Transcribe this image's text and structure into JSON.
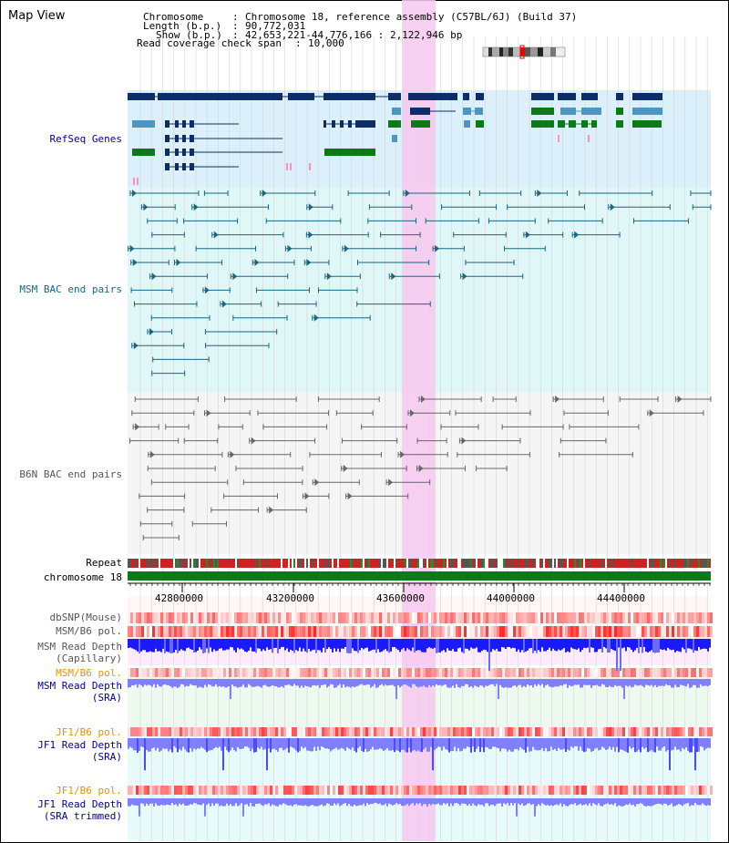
{
  "title": "Map View",
  "info": {
    "chromosome_label": "Chromosome",
    "chromosome_value": "Chromosome 18, reference assembly (C57BL/6J) (Build 37)",
    "length_label": "Length (b.p.)",
    "length_value": "90,772,031",
    "show_label": "Show (b.p.)",
    "show_value": "42,653,221-44,776,166 : 2,122,946 bp",
    "coverage_label": "Read coverage check span",
    "coverage_value": "10,000"
  },
  "tracks": {
    "refseq": "RefSeq Genes",
    "msm_bac": "MSM BAC end pairs",
    "b6n_bac": "B6N BAC end pairs",
    "repeat": "Repeat",
    "chromosome": "chromosome 18",
    "dbsnp": "dbSNP(Mouse)",
    "msm_b6_pol_1": "MSM/B6 pol.",
    "msm_depth_cap_1": "MSM Read Depth",
    "msm_depth_cap_2": "(Capillary)",
    "msm_b6_pol_2": "MSM/B6 pol.",
    "msm_depth_sra_1": "MSM Read Depth",
    "msm_depth_sra_2": "(SRA)",
    "jf1_b6_pol_1": "JF1/B6 pol.",
    "jf1_depth_sra_1": "JF1 Read Depth",
    "jf1_depth_sra_2": "(SRA)",
    "jf1_b6_pol_2": "JF1/B6 pol.",
    "jf1_depth_trim_1": "JF1 Read Depth",
    "jf1_depth_trim_2": "(SRA trimmed)"
  },
  "axis": {
    "ticks": [
      "42800000",
      "43200000",
      "43600000",
      "44000000",
      "44400000"
    ]
  },
  "colors": {
    "refseq_bg": "#dbf0fb",
    "msm_bg": "#e0f7f7",
    "b6n_bg": "#f5f5f5",
    "highlight": "#f7c8ee",
    "gene_dark": "#0d2d66",
    "gene_mid": "#4b97c2",
    "gene_green": "#0d7a1a",
    "msm_line": "#1a6680",
    "b6n_line": "#666666",
    "chrom_green": "#0d7a1a",
    "depth_blue": "#1a1aff",
    "depth_light": "#7f7fff"
  }
}
